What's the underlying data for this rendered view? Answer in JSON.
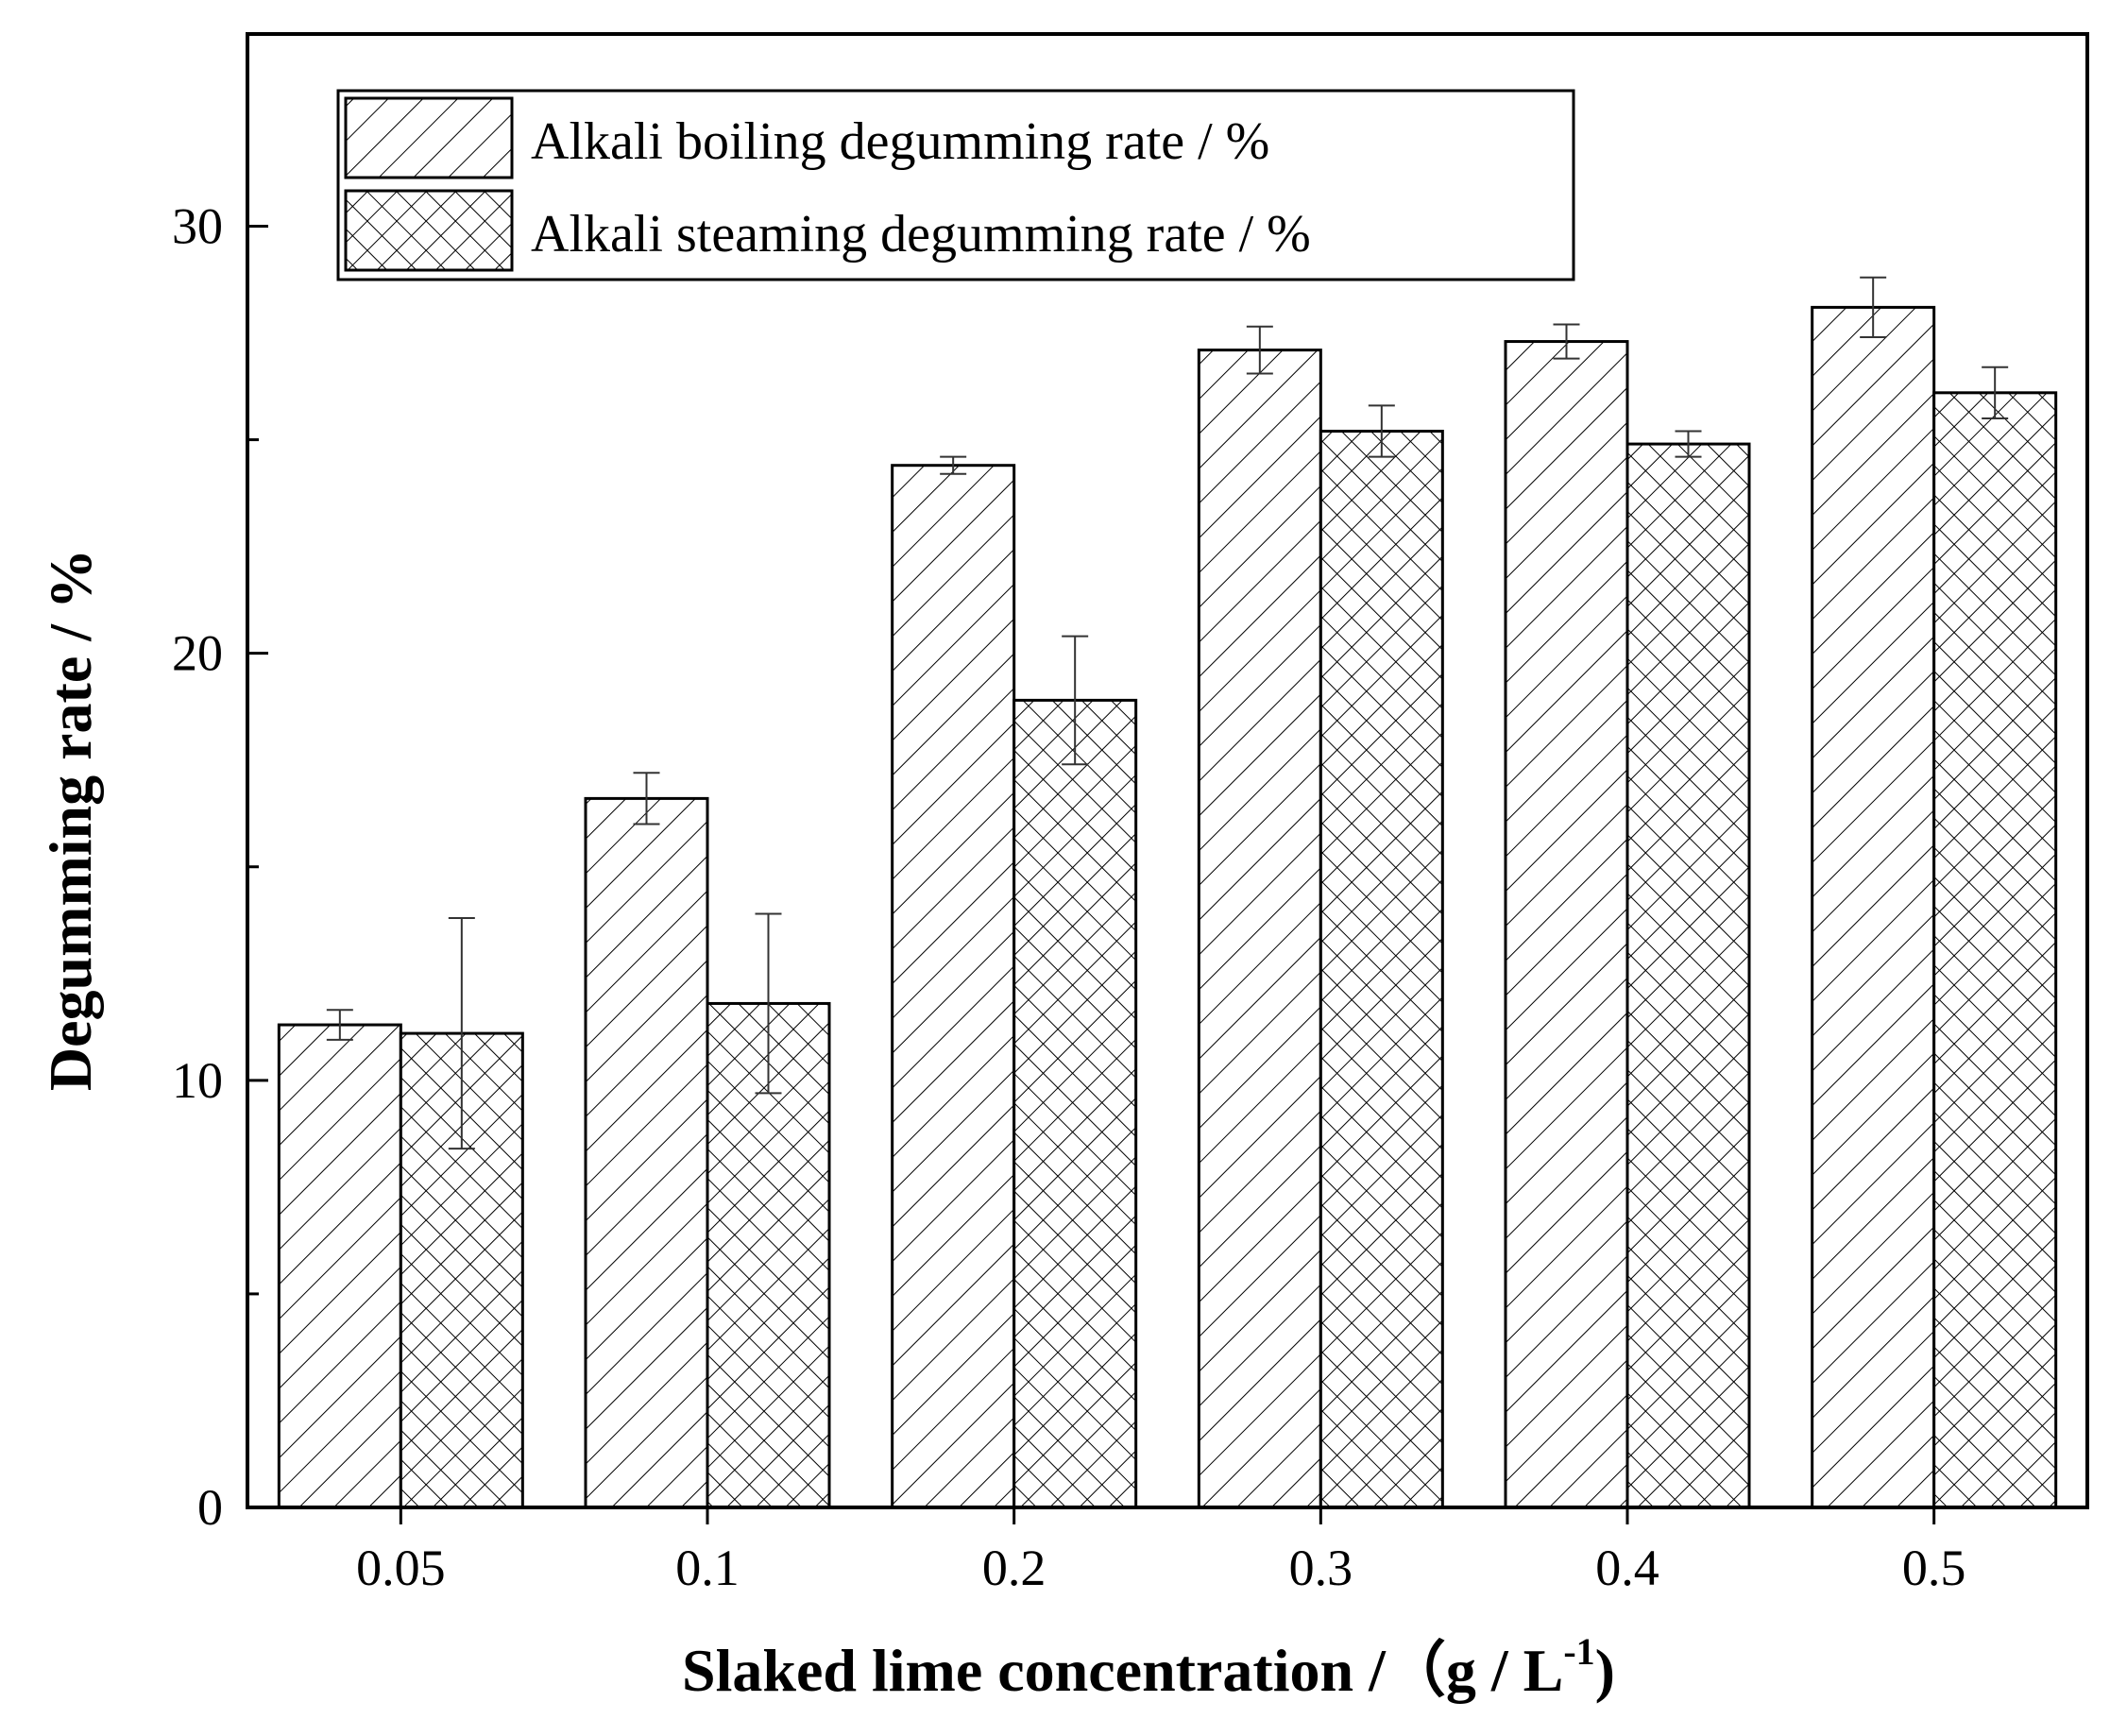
{
  "chart_data": {
    "type": "bar",
    "title": "",
    "xlabel": "Slaked lime concentration  /（g / L",
    "xlabel_superscript": "-1",
    "xlabel_suffix": ")",
    "ylabel": "Degumming rate / %",
    "categories": [
      "0.05",
      "0.1",
      "0.2",
      "0.3",
      "0.4",
      "0.5"
    ],
    "ylim": [
      0,
      34.5
    ],
    "yticks": [
      0,
      10,
      20,
      30
    ],
    "yticks_minor": [
      5,
      15,
      25
    ],
    "grid": false,
    "legend_position": "top-left",
    "series": [
      {
        "name": "Alkali boiling degumming rate / %",
        "pattern": "diagonal-hatch",
        "values": [
          11.3,
          16.6,
          24.4,
          27.1,
          27.3,
          28.1
        ],
        "errors": [
          0.35,
          0.6,
          0.2,
          0.55,
          0.4,
          0.7
        ]
      },
      {
        "name": "Alkali steaming degumming rate  / %",
        "pattern": "cross-hatch",
        "values": [
          11.1,
          11.8,
          18.9,
          25.2,
          24.9,
          26.1
        ],
        "errors": [
          2.7,
          2.1,
          1.5,
          0.6,
          0.3,
          0.6
        ]
      }
    ],
    "colors": {
      "stroke": "#000000",
      "background": "#ffffff"
    }
  }
}
